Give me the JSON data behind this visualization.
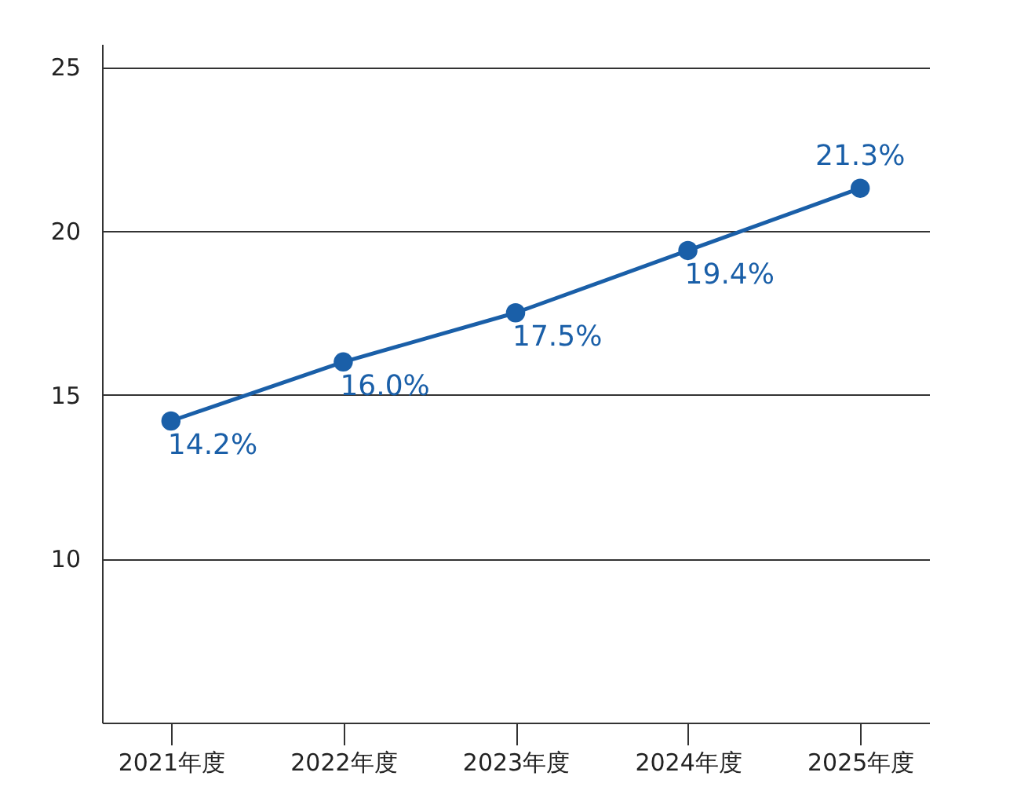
{
  "chart_data": {
    "type": "line",
    "categories": [
      "2021年度",
      "2022年度",
      "2023年度",
      "2024年度",
      "2025年度"
    ],
    "series": [
      {
        "color": "#1a5fa8",
        "values": [
          14.2,
          16.0,
          17.5,
          19.4,
          21.3
        ],
        "value_labels": [
          "14.2%",
          "16.0%",
          "17.5%",
          "19.4%",
          "21.3%"
        ]
      }
    ],
    "ylim": [
      5,
      25.7
    ],
    "yticks": [
      10,
      15,
      20,
      25
    ],
    "grid": "y",
    "marker": "circle",
    "line_style": "solid",
    "legend": false
  }
}
